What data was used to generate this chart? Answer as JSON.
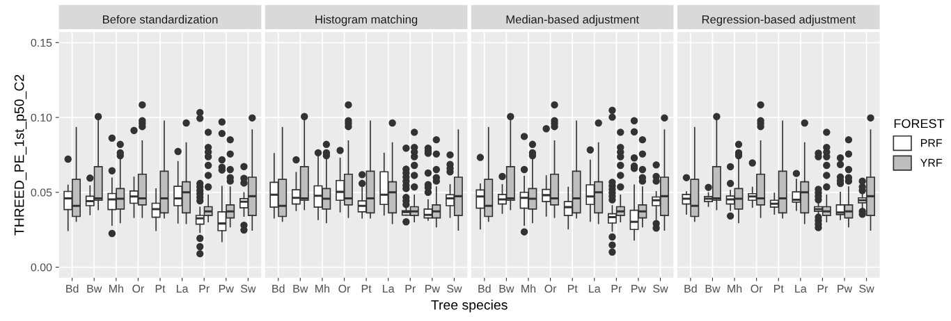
{
  "chart_data": [
    {
      "type": "box",
      "title": "Before standardization",
      "ylabel": "THREED_PE_1st_p50_C2",
      "legend_title": "FOREST",
      "legend": "right",
      "grid": true,
      "categories": [
        "Bd",
        "Bw",
        "Mh",
        "Or",
        "Pt",
        "La",
        "Pr",
        "Pw",
        "Sw"
      ],
      "ylim": [
        -0.007,
        0.157
      ],
      "yticks": [
        {
          "value": 0,
          "label": "0.00"
        },
        {
          "value": 0.05,
          "label": "0.05"
        },
        {
          "value": 0.1,
          "label": "0.10"
        },
        {
          "value": 0.15,
          "label": "0.15"
        }
      ],
      "series": [
        {
          "name": "PRF",
          "color": "#ffffff",
          "boxes": [
            {
              "low": 0.0245,
              "q1": 0.0385,
              "median": 0.046,
              "q3": 0.0506,
              "high": 0.0547,
              "outliers": [
                0.0722
              ]
            },
            {
              "low": 0.0351,
              "q1": 0.0411,
              "median": 0.0441,
              "q3": 0.0474,
              "high": 0.0543,
              "outliers": [
                0.0595
              ]
            },
            {
              "low": 0.028,
              "q1": 0.0385,
              "median": 0.0453,
              "q3": 0.0492,
              "high": 0.0595,
              "outliers": [
                0.0862,
                0.0644,
                0.0225
              ]
            },
            {
              "low": 0.0332,
              "q1": 0.0427,
              "median": 0.0472,
              "q3": 0.0509,
              "high": 0.0601,
              "outliers": [
                0.0913
              ]
            },
            {
              "low": 0.0245,
              "q1": 0.0334,
              "median": 0.0388,
              "q3": 0.0427,
              "high": 0.0523
            },
            {
              "low": 0.0295,
              "q1": 0.0411,
              "median": 0.046,
              "q3": 0.054,
              "high": 0.0705,
              "outliers": [
                0.0773
              ]
            },
            {
              "low": 0.0233,
              "q1": 0.0287,
              "median": 0.0326,
              "q3": 0.0346,
              "high": 0.04,
              "outliers": [
                0.0443,
                0.0466,
                0.0489,
                0.0512,
                0.0536,
                0.0559,
                0.0994,
                0.1033,
                0.0193,
                0.0137,
                0.009
              ]
            },
            {
              "low": 0.0171,
              "q1": 0.0244,
              "median": 0.0292,
              "q3": 0.037,
              "high": 0.0539,
              "outliers": [
                0.0649,
                0.0668,
                0.0717,
                0.0893,
                0.097
              ]
            },
            {
              "low": 0.034,
              "q1": 0.0396,
              "median": 0.0438,
              "q3": 0.0458,
              "high": 0.0497,
              "outliers": [
                0.0562,
                0.0593,
                0.0672,
                0.028,
                0.0248
              ]
            }
          ]
        },
        {
          "name": "YRF",
          "color": "#bebebe",
          "boxes": [
            {
              "low": 0.0307,
              "q1": 0.0339,
              "median": 0.041,
              "q3": 0.0587,
              "high": 0.0932
            },
            {
              "low": 0.0385,
              "q1": 0.0447,
              "median": 0.046,
              "q3": 0.0671,
              "high": 0.0986,
              "outliers": [
                0.1006
              ]
            },
            {
              "low": 0.0298,
              "q1": 0.0388,
              "median": 0.0457,
              "q3": 0.0525,
              "high": 0.0722,
              "outliers": [
                0.0745,
                0.0764,
                0.082
              ]
            },
            {
              "low": 0.0332,
              "q1": 0.0416,
              "median": 0.046,
              "q3": 0.0621,
              "high": 0.0843,
              "outliers": [
                0.0939,
                0.096,
                0.0978,
                0.1084
              ]
            },
            {
              "low": 0.0329,
              "q1": 0.0363,
              "median": 0.046,
              "q3": 0.0641,
              "high": 0.0975
            },
            {
              "low": 0.0292,
              "q1": 0.0363,
              "median": 0.05,
              "q3": 0.057,
              "high": 0.0831,
              "outliers": [
                0.0963
              ]
            },
            {
              "low": 0.0303,
              "q1": 0.0345,
              "median": 0.0373,
              "q3": 0.0404,
              "high": 0.0481,
              "outliers": [
                0.0536,
                0.0613,
                0.068,
                0.0738,
                0.0769,
                0.08,
                0.0901
              ]
            },
            {
              "low": 0.027,
              "q1": 0.0329,
              "median": 0.0373,
              "q3": 0.0416,
              "high": 0.0536,
              "outliers": [
                0.0575,
                0.0598,
                0.0652,
                0.0756,
                0.0851
              ]
            },
            {
              "low": 0.0248,
              "q1": 0.0345,
              "median": 0.0474,
              "q3": 0.0601,
              "high": 0.0916,
              "outliers": [
                0.0997
              ]
            }
          ]
        }
      ]
    },
    {
      "type": "box",
      "title": "Histogram matching",
      "xlabel": "Tree species",
      "grid": true,
      "tick_labels": "x",
      "categories": [
        "Bd",
        "Bw",
        "Mh",
        "Or",
        "Pt",
        "La",
        "Pr",
        "Pw",
        "Sw"
      ],
      "ylim": [
        -0.007,
        0.157
      ],
      "yticks": [
        0,
        0.05,
        0.1,
        0.15
      ],
      "series": [
        {
          "name": "PRF",
          "color": "#ffffff",
          "boxes": [
            {
              "low": 0.0329,
              "q1": 0.0401,
              "median": 0.0484,
              "q3": 0.0567,
              "high": 0.0758
            },
            {
              "low": 0.0379,
              "q1": 0.0422,
              "median": 0.0463,
              "q3": 0.0517,
              "high": 0.0632,
              "outliers": [
                0.0717
              ]
            },
            {
              "low": 0.0318,
              "q1": 0.0401,
              "median": 0.0477,
              "q3": 0.0543,
              "high": 0.0738,
              "outliers": [
                0.0764
              ]
            },
            {
              "low": 0.037,
              "q1": 0.0447,
              "median": 0.0503,
              "q3": 0.0579,
              "high": 0.0727,
              "outliers": [
                0.078
              ]
            },
            {
              "low": 0.0329,
              "q1": 0.037,
              "median": 0.041,
              "q3": 0.0443,
              "high": 0.0531,
              "outliers": [
                0.0559,
                0.0618
              ]
            },
            {
              "low": 0.0349,
              "q1": 0.0419,
              "median": 0.0484,
              "q3": 0.0637,
              "high": 0.0761
            },
            {
              "low": 0.0348,
              "q1": 0.0348,
              "median": 0.0368,
              "q3": 0.0377,
              "high": 0.0396,
              "outliers": [
                0.0419,
                0.0443,
                0.0466,
                0.0525,
                0.0547,
                0.0575,
                0.0602,
                0.0629,
                0.0655,
                0.0795,
                0.0303
              ]
            },
            {
              "low": 0.0314,
              "q1": 0.0329,
              "median": 0.0349,
              "q3": 0.0388,
              "high": 0.045,
              "outliers": [
                0.05,
                0.0531,
                0.0551,
                0.0629,
                0.0761,
                0.0776,
                0.0795
              ]
            },
            {
              "low": 0.0334,
              "q1": 0.0411,
              "median": 0.046,
              "q3": 0.0484,
              "high": 0.0551,
              "outliers": [
                0.0637,
                0.066,
                0.0686,
                0.075
              ]
            }
          ]
        },
        {
          "name": "YRF",
          "color": "#bebebe",
          "boxes": [
            {
              "low": 0.0307,
              "q1": 0.0339,
              "median": 0.041,
              "q3": 0.0587,
              "high": 0.0932
            },
            {
              "low": 0.0385,
              "q1": 0.0447,
              "median": 0.046,
              "q3": 0.0671,
              "high": 0.0986,
              "outliers": [
                0.1006
              ]
            },
            {
              "low": 0.0298,
              "q1": 0.0388,
              "median": 0.0457,
              "q3": 0.0525,
              "high": 0.0722,
              "outliers": [
                0.0745,
                0.0764,
                0.082
              ]
            },
            {
              "low": 0.0332,
              "q1": 0.0416,
              "median": 0.046,
              "q3": 0.0621,
              "high": 0.0843,
              "outliers": [
                0.0939,
                0.096,
                0.0978,
                0.1084
              ]
            },
            {
              "low": 0.0329,
              "q1": 0.0363,
              "median": 0.046,
              "q3": 0.0641,
              "high": 0.0975
            },
            {
              "low": 0.0292,
              "q1": 0.0363,
              "median": 0.05,
              "q3": 0.057,
              "high": 0.0831,
              "outliers": [
                0.0963
              ]
            },
            {
              "low": 0.0303,
              "q1": 0.0345,
              "median": 0.0373,
              "q3": 0.0404,
              "high": 0.0481,
              "outliers": [
                0.0536,
                0.0613,
                0.068,
                0.0738,
                0.0769,
                0.08,
                0.0901
              ]
            },
            {
              "low": 0.027,
              "q1": 0.0329,
              "median": 0.0373,
              "q3": 0.0416,
              "high": 0.0536,
              "outliers": [
                0.0575,
                0.0598,
                0.0652,
                0.0756,
                0.0851
              ]
            },
            {
              "low": 0.0248,
              "q1": 0.0345,
              "median": 0.0474,
              "q3": 0.0601,
              "high": 0.0916
            }
          ]
        }
      ]
    },
    {
      "type": "box",
      "title": "Median-based adjustment",
      "grid": true,
      "tick_labels": "x",
      "categories": [
        "Bd",
        "Bw",
        "Mh",
        "Or",
        "Pt",
        "La",
        "Pr",
        "Pw",
        "Sw"
      ],
      "ylim": [
        -0.007,
        0.157
      ],
      "yticks": [
        0,
        0.05,
        0.1,
        0.15
      ],
      "series": [
        {
          "name": "PRF",
          "color": "#ffffff",
          "boxes": [
            {
              "low": 0.0256,
              "q1": 0.0394,
              "median": 0.0472,
              "q3": 0.0516,
              "high": 0.0556,
              "outliers": [
                0.0733
              ]
            },
            {
              "low": 0.036,
              "q1": 0.0422,
              "median": 0.0453,
              "q3": 0.0486,
              "high": 0.0551,
              "outliers": [
                0.0606
              ]
            },
            {
              "low": 0.028,
              "q1": 0.0394,
              "median": 0.0463,
              "q3": 0.05,
              "high": 0.0606,
              "outliers": [
                0.0873,
                0.0652,
                0.0236
              ]
            },
            {
              "low": 0.0342,
              "q1": 0.0438,
              "median": 0.0481,
              "q3": 0.0519,
              "high": 0.061,
              "outliers": [
                0.0925
              ]
            },
            {
              "low": 0.0256,
              "q1": 0.0345,
              "median": 0.0401,
              "q3": 0.0438,
              "high": 0.0533
            },
            {
              "low": 0.0307,
              "q1": 0.0419,
              "median": 0.0472,
              "q3": 0.055,
              "high": 0.0714,
              "outliers": [
                0.0783
              ]
            },
            {
              "low": 0.0241,
              "q1": 0.0295,
              "median": 0.0334,
              "q3": 0.0357,
              "high": 0.041,
              "outliers": [
                0.045,
                0.0474,
                0.0497,
                0.052,
                0.0543,
                0.0567,
                0.1002,
                0.1048,
                0.0202,
                0.0148,
                0.0101
              ]
            },
            {
              "low": 0.0182,
              "q1": 0.0252,
              "median": 0.0303,
              "q3": 0.038,
              "high": 0.0548,
              "outliers": [
                0.066,
                0.0675,
                0.073,
                0.0904,
                0.0978
              ]
            },
            {
              "low": 0.0318,
              "q1": 0.0411,
              "median": 0.0447,
              "q3": 0.0469,
              "high": 0.0505,
              "outliers": [
                0.0575,
                0.0606,
                0.0683,
                0.0292,
                0.0261
              ]
            }
          ]
        },
        {
          "name": "YRF",
          "color": "#bebebe",
          "boxes": [
            {
              "low": 0.0307,
              "q1": 0.0339,
              "median": 0.041,
              "q3": 0.0587,
              "high": 0.0932
            },
            {
              "low": 0.0385,
              "q1": 0.0447,
              "median": 0.046,
              "q3": 0.0671,
              "high": 0.0986,
              "outliers": [
                0.1006
              ]
            },
            {
              "low": 0.0298,
              "q1": 0.0388,
              "median": 0.0457,
              "q3": 0.0525,
              "high": 0.0722,
              "outliers": [
                0.0745,
                0.0764,
                0.082
              ]
            },
            {
              "low": 0.0332,
              "q1": 0.0416,
              "median": 0.046,
              "q3": 0.0621,
              "high": 0.0843,
              "outliers": [
                0.0939,
                0.096,
                0.0978,
                0.1084
              ]
            },
            {
              "low": 0.0329,
              "q1": 0.0363,
              "median": 0.046,
              "q3": 0.0641,
              "high": 0.0975
            },
            {
              "low": 0.0292,
              "q1": 0.0363,
              "median": 0.05,
              "q3": 0.057,
              "high": 0.0831,
              "outliers": [
                0.0963
              ]
            },
            {
              "low": 0.0303,
              "q1": 0.0345,
              "median": 0.0373,
              "q3": 0.0404,
              "high": 0.0481,
              "outliers": [
                0.0536,
                0.0613,
                0.068,
                0.0738,
                0.0769,
                0.08,
                0.0901
              ]
            },
            {
              "low": 0.027,
              "q1": 0.0329,
              "median": 0.0373,
              "q3": 0.0416,
              "high": 0.0536,
              "outliers": [
                0.0575,
                0.0598,
                0.0652,
                0.0756,
                0.0851
              ]
            },
            {
              "low": 0.0248,
              "q1": 0.0345,
              "median": 0.0474,
              "q3": 0.0601,
              "high": 0.0916,
              "outliers": [
                0.0997
              ]
            }
          ]
        }
      ]
    },
    {
      "type": "box",
      "title": "Regression-based adjustment",
      "grid": true,
      "tick_labels": "x",
      "categories": [
        "Bd",
        "Bw",
        "Mh",
        "Or",
        "Pt",
        "La",
        "Pr",
        "Pw",
        "Sw"
      ],
      "ylim": [
        -0.007,
        0.157
      ],
      "yticks": [
        0,
        0.05,
        0.1,
        0.15
      ],
      "series": [
        {
          "name": "PRF",
          "color": "#ffffff",
          "boxes": [
            {
              "low": 0.0354,
              "q1": 0.0422,
              "median": 0.0457,
              "q3": 0.0486,
              "high": 0.0503,
              "outliers": [
                0.0598
              ]
            },
            {
              "low": 0.0407,
              "q1": 0.0438,
              "median": 0.0457,
              "q3": 0.0472,
              "high": 0.0497,
              "outliers": [
                0.0533
              ]
            },
            {
              "low": 0.038,
              "q1": 0.0422,
              "median": 0.0453,
              "q3": 0.0475,
              "high": 0.0512,
              "outliers": [
                0.0559,
                0.0671,
                0.0342
              ]
            },
            {
              "low": 0.0401,
              "q1": 0.0447,
              "median": 0.0472,
              "q3": 0.0491,
              "high": 0.0533,
              "outliers": [
                0.0696
              ]
            },
            {
              "low": 0.0354,
              "q1": 0.0401,
              "median": 0.0424,
              "q3": 0.0447,
              "high": 0.0494
            },
            {
              "low": 0.038,
              "q1": 0.0435,
              "median": 0.045,
              "q3": 0.0503,
              "high": 0.0587,
              "outliers": [
                0.0626
              ]
            },
            {
              "low": 0.0357,
              "q1": 0.0373,
              "median": 0.0388,
              "q3": 0.0404,
              "high": 0.0427,
              "outliers": [
                0.045,
                0.0474,
                0.0497,
                0.052,
                0.0738,
                0.0761,
                0.0334,
                0.0311,
                0.0287,
                0.0264
              ]
            },
            {
              "low": 0.0318,
              "q1": 0.0351,
              "median": 0.0365,
              "q3": 0.0416,
              "high": 0.05,
              "outliers": [
                0.0559,
                0.0578,
                0.0602,
                0.0686,
                0.073
              ]
            },
            {
              "low": 0.0388,
              "q1": 0.043,
              "median": 0.0447,
              "q3": 0.0463,
              "high": 0.0486,
              "outliers": [
                0.0512,
                0.0536,
                0.0575,
                0.0373,
                0.0354
              ]
            }
          ]
        },
        {
          "name": "YRF",
          "color": "#bebebe",
          "boxes": [
            {
              "low": 0.0307,
              "q1": 0.0339,
              "median": 0.041,
              "q3": 0.0587,
              "high": 0.0932
            },
            {
              "low": 0.0385,
              "q1": 0.0447,
              "median": 0.046,
              "q3": 0.0671,
              "high": 0.0986,
              "outliers": [
                0.1006
              ]
            },
            {
              "low": 0.0298,
              "q1": 0.0388,
              "median": 0.0457,
              "q3": 0.0525,
              "high": 0.0722,
              "outliers": [
                0.0745,
                0.0764,
                0.082
              ]
            },
            {
              "low": 0.0332,
              "q1": 0.0416,
              "median": 0.046,
              "q3": 0.0621,
              "high": 0.0843,
              "outliers": [
                0.0939,
                0.096,
                0.0978,
                0.1084
              ]
            },
            {
              "low": 0.0329,
              "q1": 0.0363,
              "median": 0.046,
              "q3": 0.0641,
              "high": 0.0975
            },
            {
              "low": 0.0292,
              "q1": 0.0363,
              "median": 0.05,
              "q3": 0.057,
              "high": 0.0831,
              "outliers": [
                0.0963
              ]
            },
            {
              "low": 0.0303,
              "q1": 0.0345,
              "median": 0.0373,
              "q3": 0.0404,
              "high": 0.0481,
              "outliers": [
                0.0536,
                0.0613,
                0.068,
                0.0738,
                0.0769,
                0.08,
                0.0901
              ]
            },
            {
              "low": 0.027,
              "q1": 0.0329,
              "median": 0.0373,
              "q3": 0.0416,
              "high": 0.0536,
              "outliers": [
                0.0575,
                0.0598,
                0.0652,
                0.0756,
                0.0851
              ]
            },
            {
              "low": 0.0248,
              "q1": 0.0345,
              "median": 0.0474,
              "q3": 0.0601,
              "high": 0.0916,
              "outliers": [
                0.0997
              ]
            }
          ]
        }
      ]
    }
  ]
}
